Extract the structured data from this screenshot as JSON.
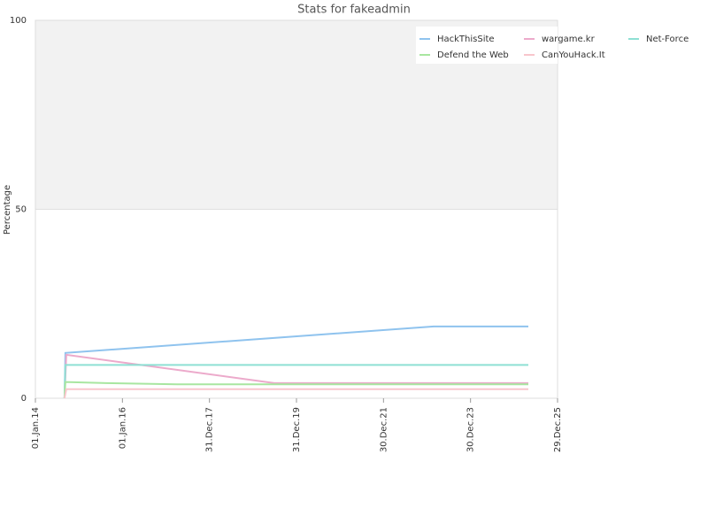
{
  "chart_data": {
    "type": "line",
    "title": "Stats for fakeadmin",
    "ylabel": "Percentage",
    "xlim": [
      "2014-01-01",
      "2025-12-29"
    ],
    "xticks": [
      {
        "value": "2014-01-01",
        "label": "01.Jan.14"
      },
      {
        "value": "2016-01-01",
        "label": "01.Jan.16"
      },
      {
        "value": "2017-12-31",
        "label": "31.Dec.17"
      },
      {
        "value": "2019-12-31",
        "label": "31.Dec.19"
      },
      {
        "value": "2021-12-30",
        "label": "30.Dec.21"
      },
      {
        "value": "2023-12-30",
        "label": "30.Dec.23"
      },
      {
        "value": "2025-12-29",
        "label": "29.Dec.25"
      }
    ],
    "ylim": [
      0,
      100
    ],
    "yticks": [
      0,
      50,
      100
    ],
    "grid_bands": true,
    "legend": "top-right",
    "series": [
      {
        "name": "HackThisSite",
        "color": "#8fc3ee",
        "x": [
          "2014-09-02",
          "2014-09-10",
          "2023-02-24",
          "2025-04-28"
        ],
        "values": [
          0,
          12,
          19,
          19
        ]
      },
      {
        "name": "wargame.kr",
        "color": "#ecaacb",
        "x": [
          "2014-09-02",
          "2014-09-17",
          "2019-06-28",
          "2025-04-28"
        ],
        "values": [
          0,
          11.5,
          4,
          4
        ]
      },
      {
        "name": "Net-Force",
        "color": "#8ee0d4",
        "x": [
          "2014-09-02",
          "2014-09-10",
          "2025-04-28"
        ],
        "values": [
          0,
          8.8,
          8.8
        ]
      },
      {
        "name": "Defend the Web",
        "color": "#a8e6a0",
        "x": [
          "2014-09-02",
          "2014-09-10",
          "2015-08-18",
          "2017-04-03",
          "2025-04-28"
        ],
        "values": [
          0,
          4.3,
          4.0,
          3.7,
          3.7
        ]
      },
      {
        "name": "CanYouHack.It",
        "color": "#f8c6cc",
        "x": [
          "2014-09-02",
          "2014-09-17",
          "2025-04-28"
        ],
        "values": [
          0,
          2.4,
          2.4
        ]
      }
    ]
  }
}
